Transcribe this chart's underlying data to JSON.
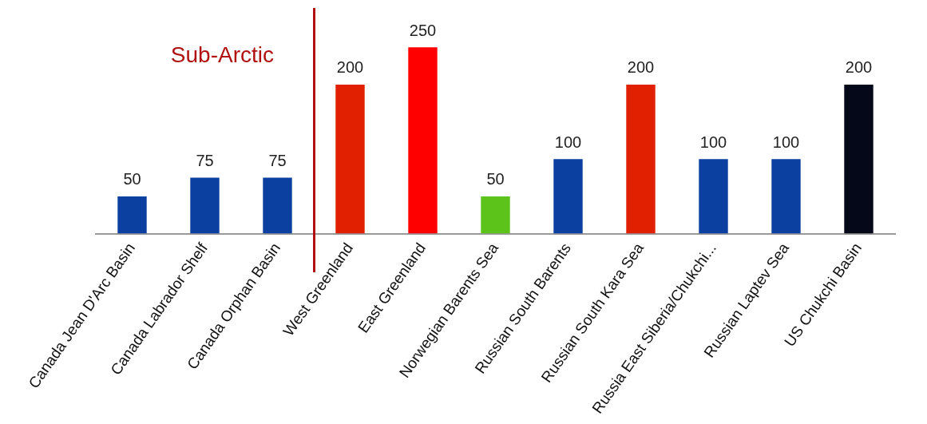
{
  "chart_data": {
    "type": "bar",
    "categories": [
      "Canada Jean D'Arc Basin",
      "Canada Labrador Shelf",
      "Canada Orphan Basin",
      "West Greenland",
      "East Greenland",
      "Norwegian Barents Sea",
      "Russian South Barents",
      "Russian South Kara Sea",
      "Russia East Siberia/Chukchi...",
      "Russian Laptev Sea",
      "US Chukchi Basin"
    ],
    "values": [
      50,
      75,
      75,
      200,
      250,
      50,
      100,
      200,
      100,
      100,
      200
    ],
    "colors": [
      "#0b3fa0",
      "#0b3fa0",
      "#0b3fa0",
      "#e02000",
      "#ff0000",
      "#5cc31a",
      "#0b3fa0",
      "#e02000",
      "#0b3fa0",
      "#0b3fa0",
      "#050818"
    ],
    "data_labels": true,
    "annotations": [
      "Sub-Arctic"
    ],
    "grid": false,
    "legend": false
  }
}
